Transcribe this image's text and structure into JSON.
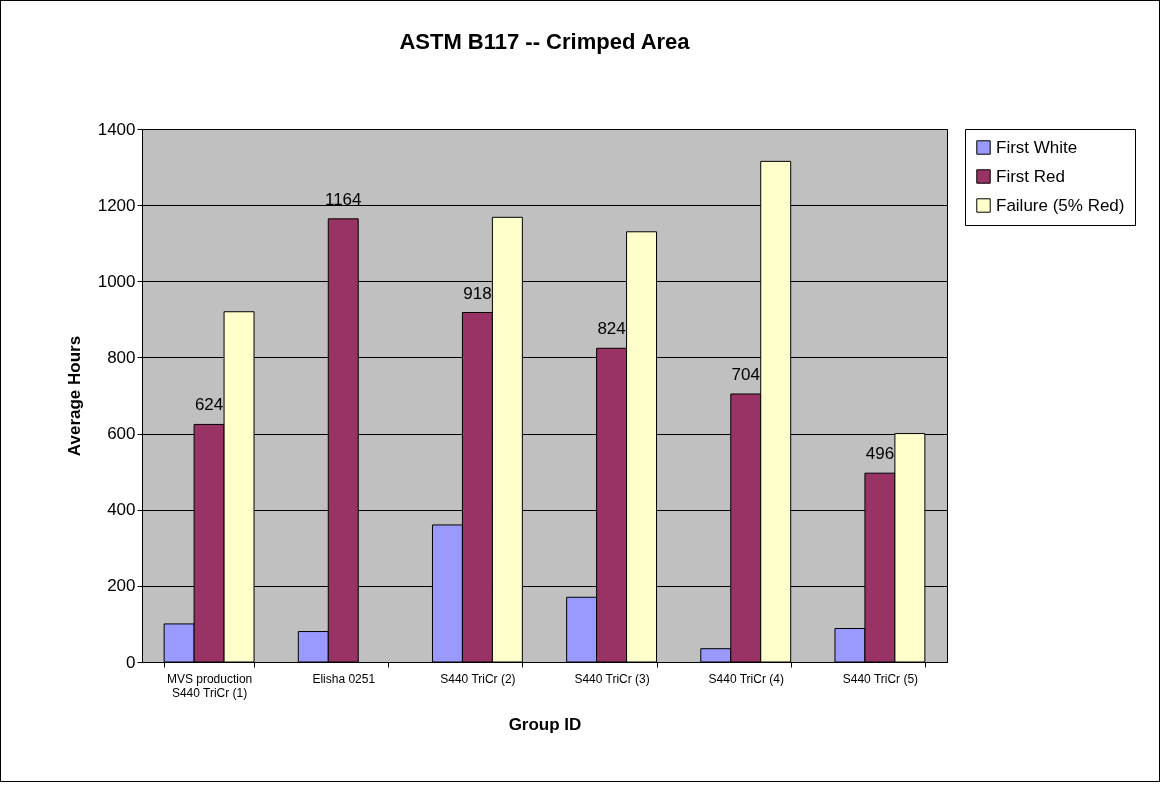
{
  "chart_data": {
    "type": "bar",
    "title": "ASTM B117 -- Crimped Area",
    "xlabel": "Group ID",
    "ylabel": "Average Hours",
    "categories": [
      "MVS production\nS440 TriCr (1)",
      "Elisha 0251",
      "S440 TriCr (2)",
      "S440 TriCr (3)",
      "S440 TriCr (4)",
      "S440 TriCr (5)"
    ],
    "series": [
      {
        "name": "First White",
        "color": "#9999ff",
        "values": [
          100,
          80,
          360,
          170,
          35,
          88
        ]
      },
      {
        "name": "First Red",
        "color": "#993366",
        "values": [
          624,
          1164,
          918,
          824,
          704,
          496
        ],
        "value_labels": [
          "624",
          "1164",
          "918",
          "824",
          "704",
          "496"
        ]
      },
      {
        "name": "Failure (5% Red)",
        "color": "#ffffcc",
        "values": [
          920,
          null,
          1168,
          1130,
          1315,
          600
        ]
      }
    ],
    "ylim": [
      0,
      1400
    ],
    "yticks": [
      0,
      200,
      400,
      600,
      800,
      1000,
      1200,
      1400
    ],
    "grid": "y",
    "legend": "right"
  }
}
